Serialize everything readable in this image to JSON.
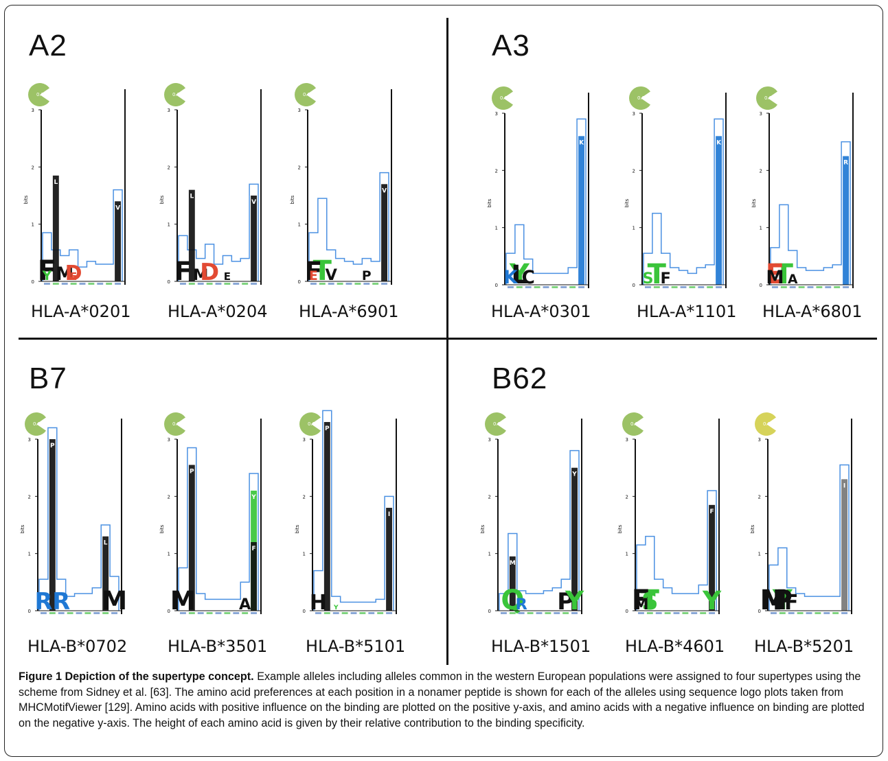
{
  "panels": [
    {
      "name": "A2",
      "alleles": [
        {
          "name": "HLA-A*0201",
          "score": "0.81",
          "ymax": 3,
          "bars": [
            0.85,
            0.55,
            0.45,
            0.55,
            0.25,
            0.35,
            0.3,
            0.3,
            1.6
          ],
          "peaks": [
            {
              "pos": 1,
              "h": 1.85,
              "color": "#111",
              "letter": "L"
            },
            {
              "pos": 8,
              "h": 1.4,
              "color": "#111",
              "letter": "V"
            }
          ],
          "letters": [
            {
              "pos": 0,
              "h": 0.6,
              "color": "#111",
              "letter": "F"
            },
            {
              "pos": 0,
              "h": 0.25,
              "color": "#3ac43a",
              "letter": "Y"
            },
            {
              "pos": 2,
              "h": 0.35,
              "color": "#111",
              "letter": "M"
            },
            {
              "pos": 3,
              "h": 0.4,
              "color": "#e24a33",
              "letter": "D"
            },
            {
              "pos": 3,
              "h": 0.2,
              "color": "#e24a33",
              "letter": "E"
            }
          ]
        },
        {
          "name": "HLA-A*0204",
          "score": "0.81",
          "ymax": 3,
          "bars": [
            0.8,
            0.55,
            0.4,
            0.65,
            0.3,
            0.45,
            0.35,
            0.4,
            1.7
          ],
          "peaks": [
            {
              "pos": 1,
              "h": 1.6,
              "color": "#111",
              "letter": "L"
            },
            {
              "pos": 8,
              "h": 1.5,
              "color": "#111",
              "letter": "V"
            }
          ],
          "letters": [
            {
              "pos": 0,
              "h": 0.5,
              "color": "#111",
              "letter": "F"
            },
            {
              "pos": 2,
              "h": 0.3,
              "color": "#111",
              "letter": "M"
            },
            {
              "pos": 3,
              "h": 0.45,
              "color": "#e24a33",
              "letter": "D"
            },
            {
              "pos": 5,
              "h": 0.2,
              "color": "#111",
              "letter": "E"
            }
          ]
        },
        {
          "name": "HLA-A*6901",
          "score": "0.81",
          "ymax": 3,
          "bars": [
            0.85,
            1.45,
            0.55,
            0.4,
            0.35,
            0.3,
            0.4,
            0.35,
            1.9
          ],
          "peaks": [
            {
              "pos": 8,
              "h": 1.7,
              "color": "#111",
              "letter": "V"
            }
          ],
          "letters": [
            {
              "pos": 1,
              "h": 1.15,
              "color": "#3ac43a",
              "letter": "T"
            },
            {
              "pos": 0,
              "h": 0.5,
              "color": "#111",
              "letter": "F"
            },
            {
              "pos": 0,
              "h": 0.25,
              "color": "#e24a33",
              "letter": "E"
            },
            {
              "pos": 2,
              "h": 0.3,
              "color": "#111",
              "letter": "V"
            },
            {
              "pos": 6,
              "h": 0.25,
              "color": "#111",
              "letter": "P"
            }
          ]
        }
      ]
    },
    {
      "name": "A3",
      "alleles": [
        {
          "name": "HLA-A*0301",
          "score": "0.81",
          "ymax": 3,
          "bars": [
            0.55,
            1.05,
            0.45,
            0.2,
            0.2,
            0.2,
            0.2,
            0.3,
            2.9
          ],
          "peaks": [
            {
              "pos": 8,
              "h": 2.6,
              "color": "#1f78d4",
              "letter": "K"
            }
          ],
          "letters": [
            {
              "pos": 1,
              "h": 0.75,
              "color": "#3ac43a",
              "letter": "Y"
            },
            {
              "pos": 1,
              "h": 0.5,
              "color": "#111",
              "letter": "L"
            },
            {
              "pos": 2,
              "h": 0.35,
              "color": "#111",
              "letter": "C"
            },
            {
              "pos": 0,
              "h": 0.35,
              "color": "#1f78d4",
              "letter": "K"
            }
          ]
        },
        {
          "name": "HLA-A*1101",
          "score": "0.81",
          "ymax": 3,
          "bars": [
            0.55,
            1.25,
            0.55,
            0.3,
            0.25,
            0.2,
            0.3,
            0.35,
            2.9
          ],
          "peaks": [
            {
              "pos": 8,
              "h": 2.6,
              "color": "#1f78d4",
              "letter": "K"
            }
          ],
          "letters": [
            {
              "pos": 1,
              "h": 1.0,
              "color": "#3ac43a",
              "letter": "T"
            },
            {
              "pos": 0,
              "h": 0.3,
              "color": "#3ac43a",
              "letter": "S"
            },
            {
              "pos": 2,
              "h": 0.3,
              "color": "#111",
              "letter": "F"
            }
          ]
        },
        {
          "name": "HLA-A*6801",
          "score": "0.81",
          "ymax": 3,
          "bars": [
            0.65,
            1.4,
            0.6,
            0.3,
            0.25,
            0.25,
            0.3,
            0.35,
            2.5
          ],
          "peaks": [
            {
              "pos": 8,
              "h": 2.25,
              "color": "#1f78d4",
              "letter": "R"
            }
          ],
          "letters": [
            {
              "pos": 1,
              "h": 1.15,
              "color": "#3ac43a",
              "letter": "T"
            },
            {
              "pos": 0,
              "h": 0.6,
              "color": "#e24a33",
              "letter": "E"
            },
            {
              "pos": 0,
              "h": 0.35,
              "color": "#111",
              "letter": "M"
            },
            {
              "pos": 2,
              "h": 0.25,
              "color": "#111",
              "letter": "A"
            }
          ]
        }
      ]
    },
    {
      "name": "B7",
      "alleles": [
        {
          "name": "HLA-B*0702",
          "score": "0.81",
          "ymax": 3,
          "bars": [
            0.55,
            3.2,
            0.55,
            0.25,
            0.3,
            0.3,
            0.4,
            1.5,
            0.6
          ],
          "peaks": [
            {
              "pos": 1,
              "h": 3.0,
              "color": "#111",
              "letter": "P"
            },
            {
              "pos": 7,
              "h": 1.3,
              "color": "#111",
              "letter": "L"
            }
          ],
          "letters": [
            {
              "pos": 0,
              "h": 0.45,
              "color": "#1f78d4",
              "letter": "R"
            },
            {
              "pos": 2,
              "h": 0.45,
              "color": "#1f78d4",
              "letter": "R"
            },
            {
              "pos": 8,
              "h": 0.5,
              "color": "#111",
              "letter": "M"
            }
          ]
        },
        {
          "name": "HLA-B*3501",
          "score": "0.81",
          "ymax": 3,
          "bars": [
            0.75,
            2.85,
            0.3,
            0.2,
            0.2,
            0.2,
            0.2,
            0.5,
            2.4
          ],
          "peaks": [
            {
              "pos": 1,
              "h": 2.55,
              "color": "#111",
              "letter": "P"
            },
            {
              "pos": 8,
              "h": 2.1,
              "color": "#3ac43a",
              "letter": "Y"
            },
            {
              "pos": 8,
              "h": 1.2,
              "color": "#111",
              "letter": "F"
            }
          ],
          "letters": [
            {
              "pos": 0,
              "h": 0.5,
              "color": "#111",
              "letter": "M"
            },
            {
              "pos": 7,
              "h": 0.3,
              "color": "#111",
              "letter": "A"
            }
          ]
        },
        {
          "name": "HLA-B*5101",
          "score": "0.81",
          "ymax": 3,
          "bars": [
            0.7,
            3.5,
            0.25,
            0.15,
            0.15,
            0.15,
            0.15,
            0.2,
            2.0
          ],
          "peaks": [
            {
              "pos": 1,
              "h": 3.3,
              "color": "#111",
              "letter": "P"
            },
            {
              "pos": 8,
              "h": 1.8,
              "color": "#111",
              "letter": "I"
            }
          ],
          "letters": [
            {
              "pos": 0,
              "h": 0.4,
              "color": "#111",
              "letter": "H"
            },
            {
              "pos": 2,
              "h": 0.12,
              "color": "#3ac43a",
              "letter": "Y"
            }
          ]
        }
      ]
    },
    {
      "name": "B62",
      "alleles": [
        {
          "name": "HLA-B*1501",
          "score": "0.81",
          "ymax": 3,
          "bars": [
            0.3,
            1.35,
            0.35,
            0.3,
            0.3,
            0.35,
            0.4,
            0.55,
            2.8
          ],
          "peaks": [
            {
              "pos": 8,
              "h": 2.5,
              "color": "#111",
              "letter": "Y"
            },
            {
              "pos": 1,
              "h": 0.95,
              "color": "#111",
              "letter": "M"
            }
          ],
          "letters": [
            {
              "pos": 1,
              "h": 0.6,
              "color": "#3ac43a",
              "letter": "Q"
            },
            {
              "pos": 2,
              "h": 0.3,
              "color": "#1f78d4",
              "letter": "R"
            },
            {
              "pos": 7,
              "h": 0.45,
              "color": "#111",
              "letter": "P"
            },
            {
              "pos": 8,
              "h": 0.5,
              "color": "#3ac43a",
              "letter": "Y"
            }
          ]
        },
        {
          "name": "HLA-B*4601",
          "score": "0.81",
          "ymax": 3,
          "bars": [
            1.15,
            1.3,
            0.55,
            0.4,
            0.3,
            0.3,
            0.3,
            0.45,
            2.1
          ],
          "peaks": [
            {
              "pos": 8,
              "h": 1.85,
              "color": "#111",
              "letter": "F"
            }
          ],
          "letters": [
            {
              "pos": 1,
              "h": 1.1,
              "color": "#3ac43a",
              "letter": "T"
            },
            {
              "pos": 0,
              "h": 0.95,
              "color": "#111",
              "letter": "F"
            },
            {
              "pos": 1,
              "h": 0.45,
              "color": "#3ac43a",
              "letter": "S"
            },
            {
              "pos": 0,
              "h": 0.3,
              "color": "#111",
              "letter": "M"
            },
            {
              "pos": 8,
              "h": 0.5,
              "color": "#3ac43a",
              "letter": "Y"
            }
          ]
        },
        {
          "name": "HLA-B*5201",
          "score": "0.72",
          "scoreColor": "#d6d35a",
          "ymax": 3,
          "bars": [
            0.8,
            1.1,
            0.4,
            0.3,
            0.25,
            0.25,
            0.25,
            0.25,
            2.55
          ],
          "peaks": [
            {
              "pos": 8,
              "h": 2.3,
              "color": "#777",
              "letter": "I"
            }
          ],
          "letters": [
            {
              "pos": 1,
              "h": 0.95,
              "color": "#3ac43a",
              "letter": "Y"
            },
            {
              "pos": 0,
              "h": 0.55,
              "color": "#111",
              "letter": "M"
            },
            {
              "pos": 1,
              "h": 0.6,
              "color": "#111",
              "letter": "P"
            },
            {
              "pos": 2,
              "h": 0.4,
              "color": "#111",
              "letter": "F"
            }
          ]
        }
      ]
    }
  ],
  "yaxis": {
    "label": "bits",
    "ticks": [
      "0",
      "1",
      "2",
      "3"
    ]
  },
  "caption": {
    "title": "Figure 1 Depiction of the supertype concept.",
    "text": " Example alleles including alleles common in the western European populations were assigned to four supertypes using the scheme from Sidney et al. [63]. The amino acid preferences at each position in a nonamer peptide is shown for each of the alleles using sequence logo plots taken from MHCMotifViewer [129]. Amino acids with positive influence on the binding are plotted on the positive y-axis, and amino acids with a negative influence on binding are plotted on the negative y-axis. The height of each amino acid is given by their relative contribution to the binding specificity."
  },
  "colors": {
    "outline": "#4a90e2",
    "ink": "#111111",
    "badge": "#9cc266",
    "positive": "#3ac43a",
    "negative": "#e24a33",
    "basic": "#1f78d4"
  }
}
